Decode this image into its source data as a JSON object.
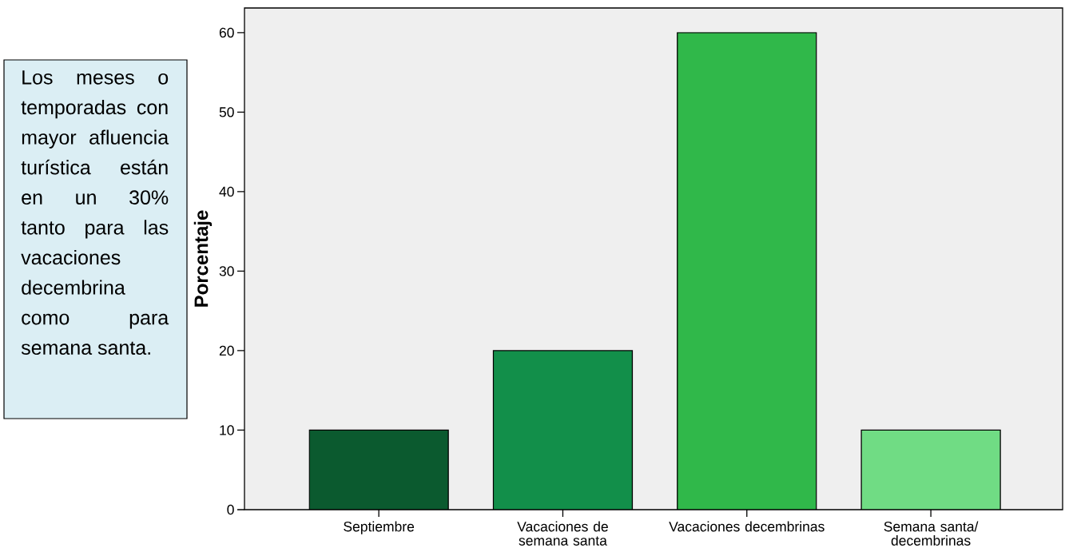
{
  "chart_data": {
    "type": "bar",
    "ylabel": "Porcentaje",
    "categories": [
      "Septiembre",
      "Vacaciones de semana santa",
      "Vacaciones decembrinas",
      "Semana santa/ decembrinas"
    ],
    "values": [
      10,
      20,
      60,
      10
    ],
    "colors": [
      "#0b5a2f",
      "#128f4a",
      "#30b84a",
      "#70dc84"
    ],
    "ylim": [
      0,
      63.1
    ],
    "yticks": [
      0,
      10,
      20,
      30,
      40,
      50,
      60
    ],
    "annotations": [
      "Los meses o temporadas con mayor afluencia turística están en un 30% tanto para las vacaciones decembrina como para semana santa."
    ]
  }
}
